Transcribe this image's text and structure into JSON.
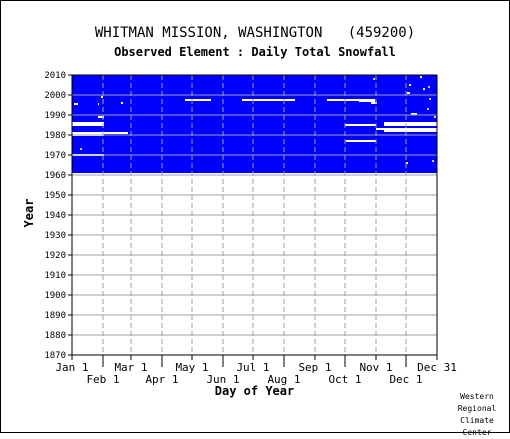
{
  "chart_data": {
    "type": "heatmap",
    "title": "WHITMAN MISSION, WASHINGTON   (459200)",
    "subtitle": "Observed Element : Daily Total Snowfall",
    "xlabel": "Day of Year",
    "ylabel": "Year",
    "xlim": [
      1,
      366
    ],
    "ylim": [
      1870,
      2010
    ],
    "y_ticks": [
      1870,
      1880,
      1890,
      1900,
      1910,
      1920,
      1930,
      1940,
      1950,
      1960,
      1970,
      1980,
      1990,
      2000,
      2010
    ],
    "x_ticks_top_row": [
      {
        "label": "Jan 1",
        "day": 1
      },
      {
        "label": "Mar 1",
        "day": 60
      },
      {
        "label": "May 1",
        "day": 121
      },
      {
        "label": "Jul 1",
        "day": 182
      },
      {
        "label": "Sep 1",
        "day": 244
      },
      {
        "label": "Nov 1",
        "day": 305
      },
      {
        "label": "Dec 31",
        "day": 366
      }
    ],
    "x_ticks_bottom_row": [
      {
        "label": "Feb 1",
        "day": 32
      },
      {
        "label": "Apr 1",
        "day": 91
      },
      {
        "label": "Jun 1",
        "day": 152
      },
      {
        "label": "Aug 1",
        "day": 213
      },
      {
        "label": "Oct 1",
        "day": 274
      },
      {
        "label": "Dec 1",
        "day": 335
      }
    ],
    "grid": true,
    "data_color": "#0000ff",
    "grid_color": "#a0a0a0",
    "coverage": {
      "year_start": 1961,
      "year_end": 2010,
      "day_start": 1,
      "day_end": 366,
      "description": "observed data present for nearly all days"
    },
    "missing_segments": [
      {
        "year": 1995.5,
        "day_start": 3,
        "day_end": 7
      },
      {
        "year": 1999,
        "day_start": 30,
        "day_end": 32
      },
      {
        "year": 1995.5,
        "day_start": 27,
        "day_end": 28
      },
      {
        "year": 1989,
        "day_start": 27,
        "day_end": 33
      },
      {
        "year": 1986,
        "day_start": 1,
        "day_end": 33
      },
      {
        "year": 1985,
        "day_start": 1,
        "day_end": 33
      },
      {
        "year": 1981,
        "day_start": 1,
        "day_end": 57
      },
      {
        "year": 1980,
        "day_start": 1,
        "day_end": 33
      },
      {
        "year": 1970,
        "day_start": 1,
        "day_end": 33
      },
      {
        "year": 1996,
        "day_start": 50,
        "day_end": 52
      },
      {
        "year": 1997.5,
        "day_start": 114,
        "day_end": 140
      },
      {
        "year": 1997.5,
        "day_start": 171,
        "day_end": 224
      },
      {
        "year": 1997.5,
        "day_start": 256,
        "day_end": 304
      },
      {
        "year": 1997,
        "day_start": 288,
        "day_end": 304
      },
      {
        "year": 1996,
        "day_start": 300,
        "day_end": 306
      },
      {
        "year": 1985,
        "day_start": 274,
        "day_end": 305
      },
      {
        "year": 1977,
        "day_start": 275,
        "day_end": 305
      },
      {
        "year": 1986,
        "day_start": 313,
        "day_end": 366
      },
      {
        "year": 1985,
        "day_start": 313,
        "day_end": 366
      },
      {
        "year": 1983,
        "day_start": 305,
        "day_end": 366
      },
      {
        "year": 1982,
        "day_start": 313,
        "day_end": 366
      },
      {
        "year": 1990.5,
        "day_start": 340,
        "day_end": 346
      },
      {
        "year": 2001,
        "day_start": 336,
        "day_end": 339
      },
      {
        "year": 2005,
        "day_start": 338,
        "day_end": 340
      },
      {
        "year": 1966,
        "day_start": 335,
        "day_end": 337
      },
      {
        "year": 2009,
        "day_start": 349,
        "day_end": 351
      },
      {
        "year": 2003,
        "day_start": 352,
        "day_end": 354
      }
    ],
    "missing_isolated_days": [
      {
        "year": 2008,
        "day": 303
      },
      {
        "year": 2004,
        "day": 358
      },
      {
        "year": 1998,
        "day": 359
      },
      {
        "year": 1993,
        "day": 357
      },
      {
        "year": 1989,
        "day": 364
      },
      {
        "year": 1973,
        "day": 10
      },
      {
        "year": 1967,
        "day": 362
      }
    ]
  },
  "credit_lines": [
    "Western",
    "Regional",
    "Climate",
    "Center"
  ]
}
